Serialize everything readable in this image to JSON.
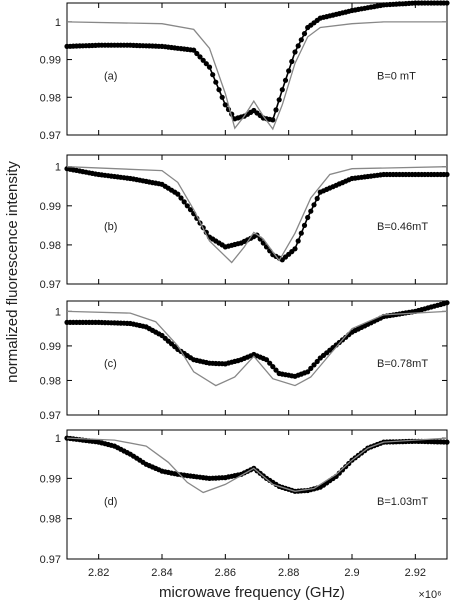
{
  "figure": {
    "ylabel": "normalized fluorescence intensity",
    "xlabel": "microwave frequency (GHz)",
    "x_multiplier": "×10⁶"
  },
  "chart_data": [
    {
      "type": "line",
      "panel_label": "(a)",
      "annotation": "B=0 mT",
      "xlim": [
        2.81,
        2.93
      ],
      "ylim": [
        0.97,
        1.005
      ],
      "x_ticks": [],
      "y_ticks": [
        0.97,
        0.98,
        0.99,
        1
      ],
      "y_tick_labels": [
        "0.97",
        "0.98",
        "0.99",
        "1"
      ],
      "series": [
        {
          "style": "dots",
          "color": "#000000",
          "x": [
            2.81,
            2.82,
            2.83,
            2.84,
            2.85,
            2.855,
            2.86,
            2.863,
            2.866,
            2.869,
            2.872,
            2.875,
            2.878,
            2.882,
            2.886,
            2.89,
            2.9,
            2.91,
            2.92,
            2.93
          ],
          "y": [
            0.9935,
            0.9938,
            0.9938,
            0.9935,
            0.9925,
            0.988,
            0.978,
            0.9743,
            0.975,
            0.9765,
            0.9745,
            0.974,
            0.982,
            0.992,
            0.9985,
            1.001,
            1.003,
            1.0045,
            1.005,
            1.005
          ]
        },
        {
          "style": "line",
          "color": "#888888",
          "x": [
            2.81,
            2.84,
            2.85,
            2.855,
            2.86,
            2.863,
            2.866,
            2.869,
            2.872,
            2.875,
            2.878,
            2.882,
            2.886,
            2.89,
            2.9,
            2.91,
            2.93
          ],
          "y": [
            1.0,
            0.9995,
            0.998,
            0.993,
            0.981,
            0.9718,
            0.975,
            0.979,
            0.975,
            0.9716,
            0.978,
            0.989,
            0.996,
            0.9985,
            0.9995,
            1.0,
            1.0
          ]
        }
      ]
    },
    {
      "type": "line",
      "panel_label": "(b)",
      "annotation": "B=0.46mT",
      "xlim": [
        2.81,
        2.93
      ],
      "ylim": [
        0.97,
        1.003
      ],
      "x_ticks": [],
      "y_ticks": [
        0.97,
        0.98,
        0.99,
        1
      ],
      "y_tick_labels": [
        "0.97",
        "0.98",
        "0.99",
        "1"
      ],
      "series": [
        {
          "style": "dots",
          "color": "#000000",
          "x": [
            2.81,
            2.82,
            2.83,
            2.84,
            2.845,
            2.85,
            2.855,
            2.86,
            2.865,
            2.87,
            2.875,
            2.878,
            2.882,
            2.886,
            2.89,
            2.9,
            2.91,
            2.93
          ],
          "y": [
            0.9995,
            0.998,
            0.997,
            0.9955,
            0.993,
            0.988,
            0.982,
            0.9795,
            0.9805,
            0.9825,
            0.9775,
            0.9762,
            0.979,
            0.987,
            0.9935,
            0.997,
            0.998,
            0.998
          ]
        },
        {
          "style": "line",
          "color": "#888888",
          "x": [
            2.81,
            2.84,
            2.845,
            2.85,
            2.855,
            2.862,
            2.866,
            2.869,
            2.872,
            2.877,
            2.882,
            2.887,
            2.893,
            2.9,
            2.93
          ],
          "y": [
            1.0,
            0.999,
            0.996,
            0.989,
            0.981,
            0.9755,
            0.9795,
            0.9832,
            0.9815,
            0.976,
            0.983,
            0.992,
            0.998,
            0.9995,
            1.0
          ]
        }
      ]
    },
    {
      "type": "line",
      "panel_label": "(c)",
      "annotation": "B=0.78mT",
      "xlim": [
        2.81,
        2.93
      ],
      "ylim": [
        0.97,
        1.003
      ],
      "x_ticks": [],
      "y_ticks": [
        0.97,
        0.98,
        0.99,
        1
      ],
      "y_tick_labels": [
        "0.97",
        "0.98",
        "0.99",
        "1"
      ],
      "series": [
        {
          "style": "dots",
          "color": "#000000",
          "x": [
            2.81,
            2.82,
            2.83,
            2.835,
            2.84,
            2.845,
            2.85,
            2.855,
            2.86,
            2.865,
            2.869,
            2.873,
            2.877,
            2.882,
            2.886,
            2.89,
            2.9,
            2.91,
            2.92,
            2.93
          ],
          "y": [
            0.9968,
            0.9968,
            0.9965,
            0.9955,
            0.993,
            0.989,
            0.986,
            0.985,
            0.9848,
            0.986,
            0.9875,
            0.986,
            0.982,
            0.9812,
            0.9825,
            0.9865,
            0.994,
            0.9985,
            1.0,
            1.0025
          ]
        },
        {
          "style": "line",
          "color": "#888888",
          "x": [
            2.81,
            2.83,
            2.838,
            2.845,
            2.85,
            2.857,
            2.863,
            2.869,
            2.875,
            2.882,
            2.887,
            2.893,
            2.9,
            2.91,
            2.93
          ],
          "y": [
            1.0,
            0.9995,
            0.997,
            0.99,
            0.9825,
            0.9785,
            0.981,
            0.987,
            0.9805,
            0.9785,
            0.981,
            0.9875,
            0.995,
            0.999,
            1.0
          ]
        }
      ]
    },
    {
      "type": "line",
      "panel_label": "(d)",
      "annotation": "B=1.03mT",
      "xlim": [
        2.81,
        2.93
      ],
      "ylim": [
        0.97,
        1.002
      ],
      "x_ticks": [
        2.82,
        2.84,
        2.86,
        2.88,
        2.9,
        2.92
      ],
      "x_tick_labels": [
        "2.82",
        "2.84",
        "2.86",
        "2.88",
        "2.9",
        "2.92"
      ],
      "y_ticks": [
        0.97,
        0.98,
        0.99,
        1
      ],
      "y_tick_labels": [
        "0.97",
        "0.98",
        "0.99",
        "1"
      ],
      "series": [
        {
          "style": "dots",
          "color": "#000000",
          "x": [
            2.81,
            2.815,
            2.82,
            2.825,
            2.83,
            2.835,
            2.84,
            2.845,
            2.85,
            2.855,
            2.86,
            2.865,
            2.869,
            2.873,
            2.877,
            2.882,
            2.886,
            2.89,
            2.895,
            2.9,
            2.905,
            2.91,
            2.92,
            2.93
          ],
          "y": [
            1.0,
            0.9995,
            0.999,
            0.998,
            0.996,
            0.9935,
            0.9918,
            0.991,
            0.9905,
            0.99,
            0.9902,
            0.991,
            0.9925,
            0.99,
            0.988,
            0.9868,
            0.987,
            0.9878,
            0.9905,
            0.9945,
            0.9975,
            0.999,
            0.9992,
            0.999
          ]
        },
        {
          "style": "line",
          "color": "#888888",
          "x": [
            2.81,
            2.825,
            2.835,
            2.842,
            2.848,
            2.853,
            2.86,
            2.869,
            2.875,
            2.882,
            2.888,
            2.895,
            2.9,
            2.905,
            2.91,
            2.93
          ],
          "y": [
            1.0,
            0.9995,
            0.998,
            0.994,
            0.989,
            0.9865,
            0.9885,
            0.9925,
            0.9885,
            0.9868,
            0.9875,
            0.991,
            0.9945,
            0.9975,
            0.999,
            1.0
          ]
        }
      ]
    }
  ]
}
